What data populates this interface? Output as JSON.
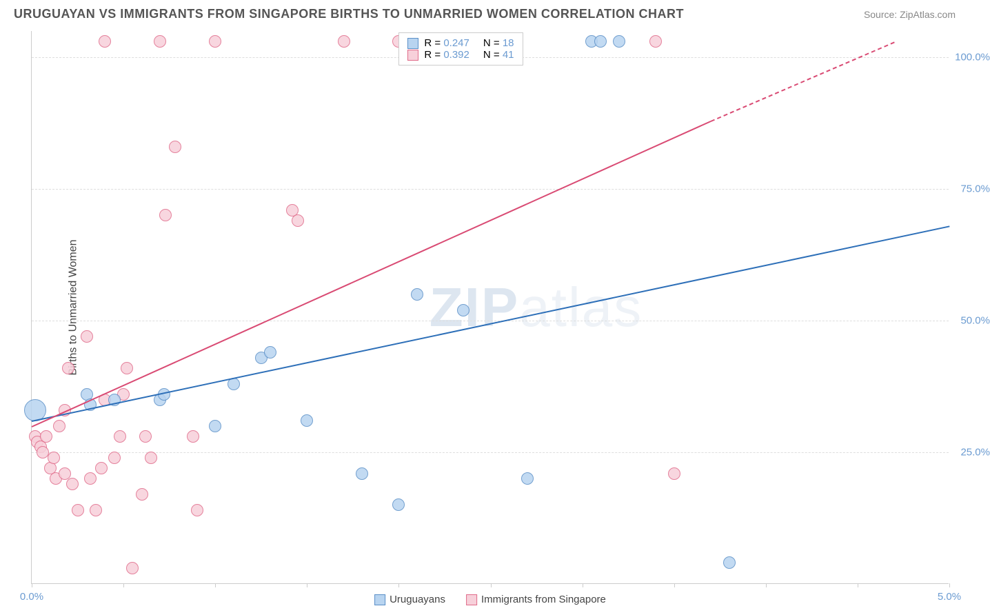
{
  "header": {
    "title": "URUGUAYAN VS IMMIGRANTS FROM SINGAPORE BIRTHS TO UNMARRIED WOMEN CORRELATION CHART",
    "source_prefix": "Source: ",
    "source": "ZipAtlas.com"
  },
  "chart": {
    "type": "scatter",
    "ylabel": "Births to Unmarried Women",
    "xlim": [
      0,
      5
    ],
    "ylim": [
      0,
      105
    ],
    "xtick_label_min": "0.0%",
    "xtick_label_max": "5.0%",
    "xticks": [
      0,
      0.5,
      1,
      1.5,
      2,
      2.5,
      3,
      3.5,
      4,
      4.5,
      5
    ],
    "ytick_labels": [
      {
        "v": 25,
        "label": "25.0%"
      },
      {
        "v": 50,
        "label": "50.0%"
      },
      {
        "v": 75,
        "label": "75.0%"
      },
      {
        "v": 100,
        "label": "100.0%"
      }
    ],
    "grid_color": "#dddddd",
    "background_color": "#ffffff",
    "marker_radius": 9,
    "watermark": "ZIPatlas",
    "series": [
      {
        "name": "Uruguayans",
        "color_fill": "#b8d4f0",
        "color_stroke": "#5a8fc7",
        "line_color": "#2d6fb8",
        "r": "0.247",
        "n": "18",
        "trend": {
          "x1": 0.0,
          "y1": 31,
          "x2": 5.0,
          "y2": 68
        },
        "points": [
          {
            "x": 0.02,
            "y": 33,
            "r": 16
          },
          {
            "x": 0.3,
            "y": 36
          },
          {
            "x": 0.32,
            "y": 34
          },
          {
            "x": 0.45,
            "y": 35
          },
          {
            "x": 0.7,
            "y": 35
          },
          {
            "x": 0.72,
            "y": 36
          },
          {
            "x": 1.0,
            "y": 30
          },
          {
            "x": 1.1,
            "y": 38
          },
          {
            "x": 1.25,
            "y": 43
          },
          {
            "x": 1.3,
            "y": 44
          },
          {
            "x": 1.5,
            "y": 31
          },
          {
            "x": 1.8,
            "y": 21
          },
          {
            "x": 2.0,
            "y": 15
          },
          {
            "x": 2.1,
            "y": 55
          },
          {
            "x": 2.35,
            "y": 52
          },
          {
            "x": 2.7,
            "y": 20
          },
          {
            "x": 3.05,
            "y": 103
          },
          {
            "x": 3.1,
            "y": 103
          },
          {
            "x": 3.2,
            "y": 103
          },
          {
            "x": 3.8,
            "y": 4
          }
        ]
      },
      {
        "name": "Immigrants from Singapore",
        "color_fill": "#f7d0da",
        "color_stroke": "#e06b8a",
        "line_color": "#d94a73",
        "r": "0.392",
        "n": "41",
        "trend": {
          "x1": 0.0,
          "y1": 30,
          "x2": 3.7,
          "y2": 88
        },
        "trend_dashed": {
          "x1": 3.7,
          "y1": 88,
          "x2": 4.7,
          "y2": 103
        },
        "points": [
          {
            "x": 0.02,
            "y": 28
          },
          {
            "x": 0.03,
            "y": 27
          },
          {
            "x": 0.05,
            "y": 26
          },
          {
            "x": 0.06,
            "y": 25
          },
          {
            "x": 0.08,
            "y": 28
          },
          {
            "x": 0.1,
            "y": 22
          },
          {
            "x": 0.12,
            "y": 24
          },
          {
            "x": 0.13,
            "y": 20
          },
          {
            "x": 0.15,
            "y": 30
          },
          {
            "x": 0.18,
            "y": 21
          },
          {
            "x": 0.18,
            "y": 33
          },
          {
            "x": 0.2,
            "y": 41
          },
          {
            "x": 0.22,
            "y": 19
          },
          {
            "x": 0.25,
            "y": 14
          },
          {
            "x": 0.3,
            "y": 47
          },
          {
            "x": 0.32,
            "y": 20
          },
          {
            "x": 0.35,
            "y": 14
          },
          {
            "x": 0.38,
            "y": 22
          },
          {
            "x": 0.4,
            "y": 35
          },
          {
            "x": 0.4,
            "y": 103
          },
          {
            "x": 0.45,
            "y": 24
          },
          {
            "x": 0.48,
            "y": 28
          },
          {
            "x": 0.5,
            "y": 36
          },
          {
            "x": 0.52,
            "y": 41
          },
          {
            "x": 0.55,
            "y": 3
          },
          {
            "x": 0.6,
            "y": 17
          },
          {
            "x": 0.62,
            "y": 28
          },
          {
            "x": 0.65,
            "y": 24
          },
          {
            "x": 0.7,
            "y": 103
          },
          {
            "x": 0.73,
            "y": 70
          },
          {
            "x": 0.78,
            "y": 83
          },
          {
            "x": 0.88,
            "y": 28
          },
          {
            "x": 0.9,
            "y": 14
          },
          {
            "x": 1.0,
            "y": 103
          },
          {
            "x": 1.42,
            "y": 71
          },
          {
            "x": 1.45,
            "y": 69
          },
          {
            "x": 1.7,
            "y": 103
          },
          {
            "x": 2.0,
            "y": 103
          },
          {
            "x": 3.4,
            "y": 103
          },
          {
            "x": 3.5,
            "y": 21
          }
        ]
      }
    ],
    "legend_top": {
      "r_label": "R =",
      "n_label": "N ="
    }
  }
}
